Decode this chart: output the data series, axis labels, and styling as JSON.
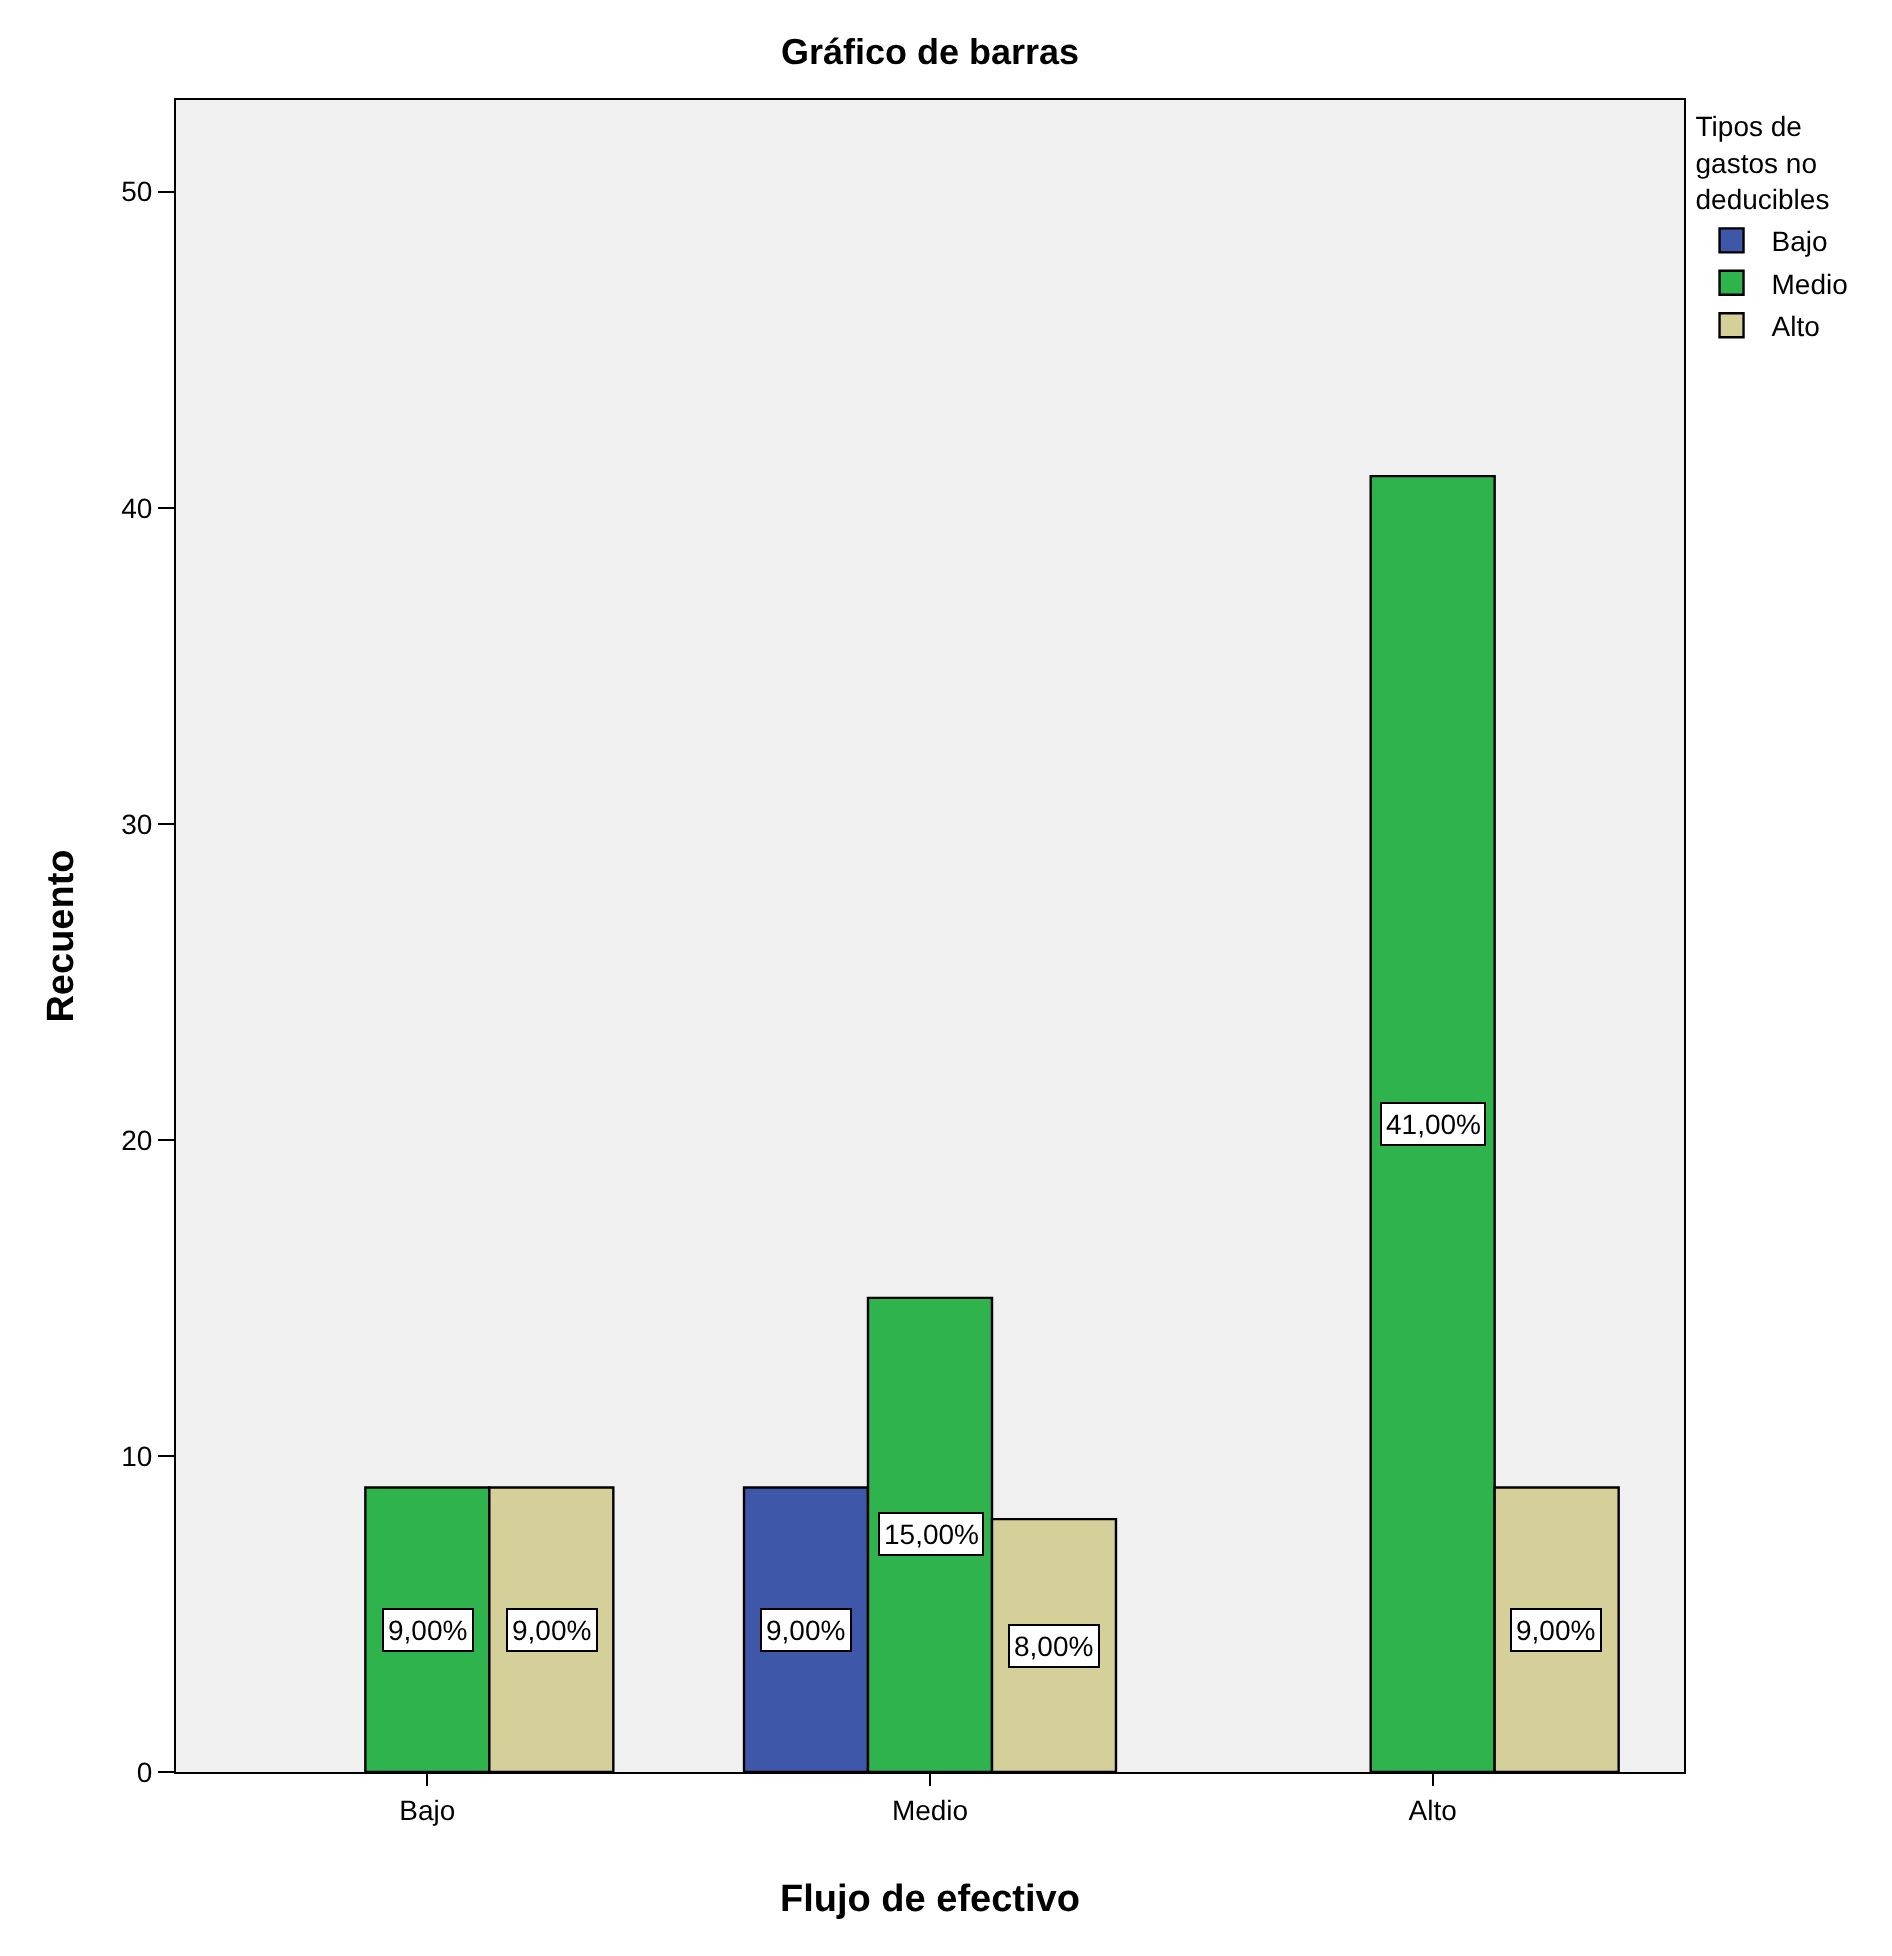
{
  "chart_data": {
    "type": "bar",
    "title": "Gráfico de barras",
    "xlabel": "Flujo de efectivo",
    "ylabel": "Recuento",
    "legend_title": "Tipos de gastos no deducibles",
    "categories": [
      "Bajo",
      "Medio",
      "Alto"
    ],
    "series": [
      {
        "name": "Bajo",
        "color": "#3f57a8",
        "values": [
          null,
          9,
          null
        ],
        "value_labels": [
          null,
          "9,00%",
          null
        ]
      },
      {
        "name": "Medio",
        "color": "#2fb34c",
        "values": [
          9,
          15,
          41
        ],
        "value_labels": [
          "9,00%",
          "15,00%",
          "41,00%"
        ]
      },
      {
        "name": "Alto",
        "color": "#d5cf99",
        "values": [
          9,
          8,
          9
        ],
        "value_labels": [
          "9,00%",
          "8,00%",
          "9,00%"
        ]
      }
    ],
    "ylim": [
      0,
      52.9
    ],
    "yticks": [
      0,
      10,
      20,
      30,
      40,
      50
    ],
    "grid": false,
    "legend": "top right"
  }
}
